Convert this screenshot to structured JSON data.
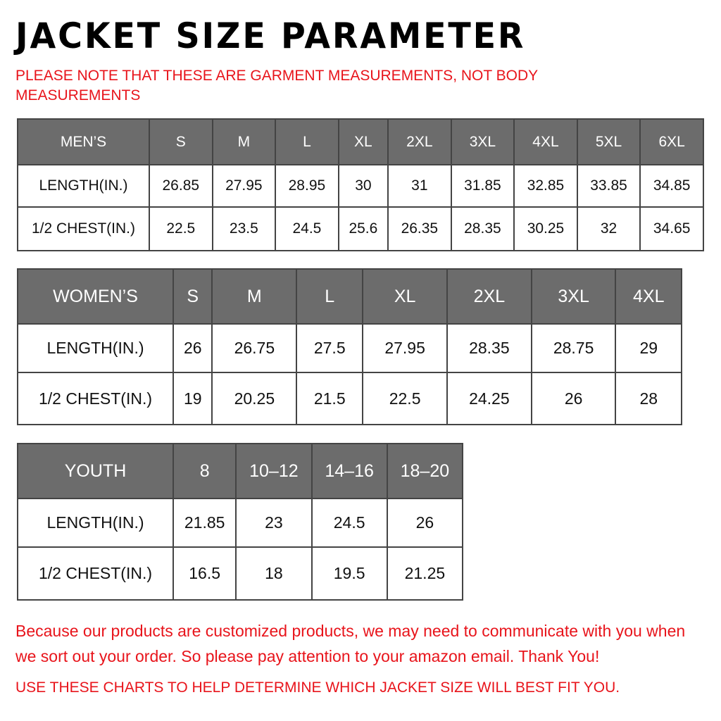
{
  "title": "JACKET SIZE PARAMETER",
  "note": "PLEASE NOTE THAT THESE ARE GARMENT MEASUREMENTS, NOT BODY MEASUREMENTS",
  "colors": {
    "header_bg": "#6c6c6c",
    "note_red": "#e8141b"
  },
  "tables": [
    {
      "headers": [
        "MEN’S",
        "S",
        "M",
        "L",
        "XL",
        "2XL",
        "3XL",
        "4XL",
        "5XL",
        "6XL"
      ],
      "rows": [
        [
          "LENGTH(IN.)",
          "26.85",
          "27.95",
          "28.95",
          "30",
          "31",
          "31.85",
          "32.85",
          "33.85",
          "34.85"
        ],
        [
          "1/2 CHEST(IN.)",
          "22.5",
          "23.5",
          "24.5",
          "25.6",
          "26.35",
          "28.35",
          "30.25",
          "32",
          "34.65"
        ]
      ]
    },
    {
      "headers": [
        "WOMEN’S",
        "S",
        "M",
        "L",
        "XL",
        "2XL",
        "3XL",
        "4XL"
      ],
      "rows": [
        [
          "LENGTH(IN.)",
          "26",
          "26.75",
          "27.5",
          "27.95",
          "28.35",
          "28.75",
          "29"
        ],
        [
          "1/2 CHEST(IN.)",
          "19",
          "20.25",
          "21.5",
          "22.5",
          "24.25",
          "26",
          "28"
        ]
      ]
    },
    {
      "headers": [
        "YOUTH",
        "8",
        "10–12",
        "14–16",
        "18–20"
      ],
      "rows": [
        [
          "LENGTH(IN.)",
          "21.85",
          "23",
          "24.5",
          "26"
        ],
        [
          "1/2 CHEST(IN.)",
          "16.5",
          "18",
          "19.5",
          "21.25"
        ]
      ]
    }
  ],
  "footer": {
    "message": "Because our products are customized products, we may need to communicate with you when we sort out your order. So please pay attention to your amazon email. Thank You!",
    "instruction": "USE THESE CHARTS TO HELP DETERMINE WHICH JACKET SIZE WILL BEST FIT YOU."
  }
}
